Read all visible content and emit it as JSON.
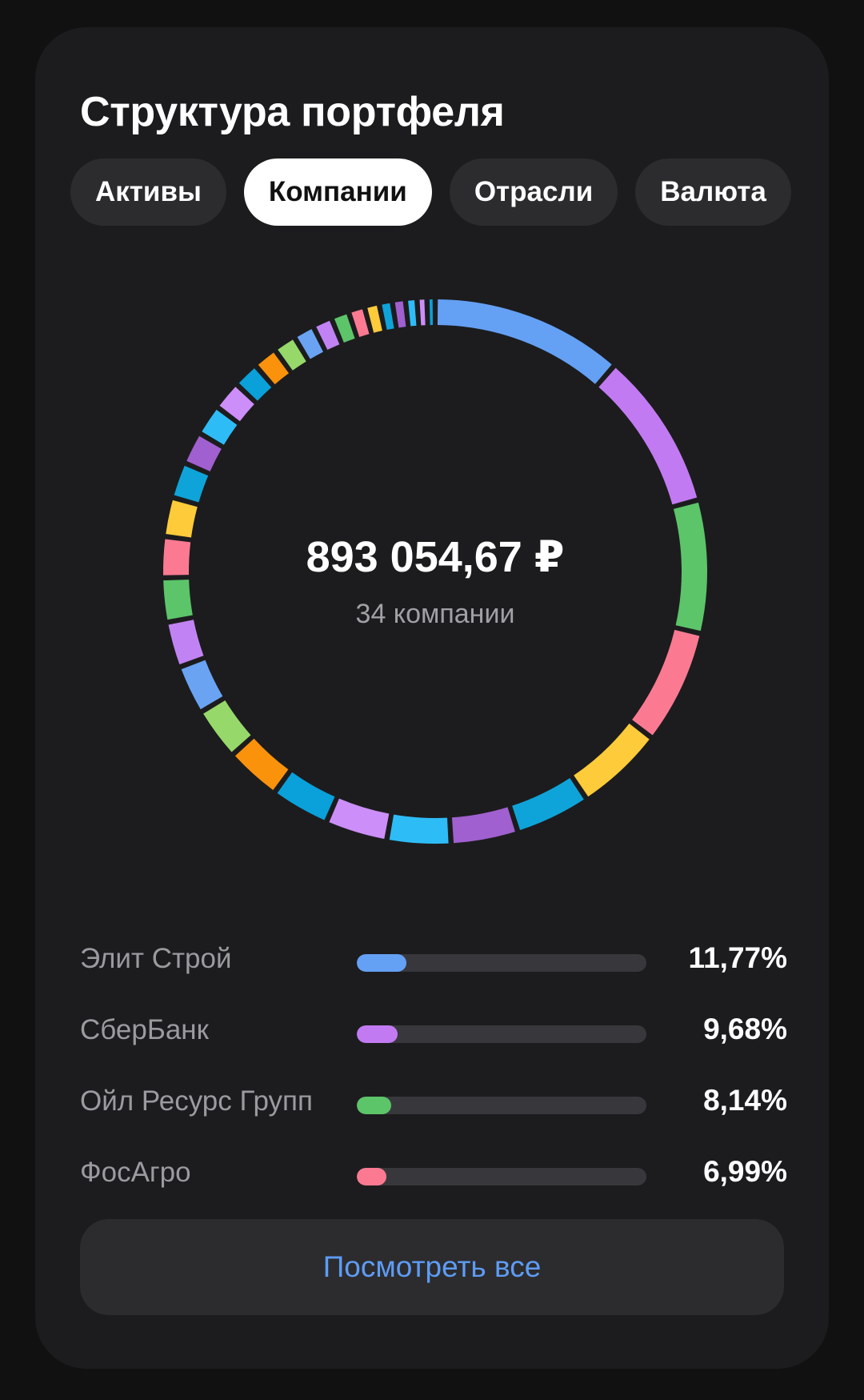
{
  "title": "Структура портфеля",
  "tabs": [
    {
      "label": "Активы",
      "active": false
    },
    {
      "label": "Компании",
      "active": true
    },
    {
      "label": "Отрасли",
      "active": false
    },
    {
      "label": "Валюта",
      "active": false
    }
  ],
  "summary": {
    "total": "893 054,67 ₽",
    "companies_count": "34 компании"
  },
  "chart_data": {
    "type": "pie",
    "variant": "donut",
    "slice_count": 34,
    "slices_percent": [
      11.77,
      9.68,
      8.14,
      6.99,
      5.4,
      4.6,
      4.1,
      3.9,
      3.8,
      3.6,
      3.4,
      3.2,
      3.0,
      2.8,
      2.7,
      2.5,
      2.4,
      2.2,
      2.0,
      1.9,
      1.8,
      1.6,
      1.5,
      1.4,
      1.3,
      1.2,
      1.1,
      1.0,
      0.9,
      0.8,
      0.8,
      0.7,
      0.6,
      0.5
    ],
    "colors": [
      "#64a0f4",
      "#c27af2",
      "#5cc469",
      "#fb7a92",
      "#fecb3a",
      "#0ea4d9",
      "#a060cf",
      "#2ebcf7",
      "#cc8ef8",
      "#0aa0da",
      "#fa920b",
      "#96d96a",
      "#6aa3f2",
      "#c183f3",
      "#5cc469",
      "#fb7a92",
      "#fecb3a",
      "#0ea4d9",
      "#a060cf",
      "#2ebcf7",
      "#cc8ef8",
      "#0aa0da",
      "#fa920b",
      "#96d96a",
      "#6aa3f2",
      "#c183f3",
      "#5cc469",
      "#fb7a92",
      "#fecb3a",
      "#0ea4d9",
      "#a060cf",
      "#2ebcf7",
      "#cc8ef8",
      "#0aa0da"
    ]
  },
  "legend": [
    {
      "name": "Элит Строй",
      "percent": "11,77%",
      "value": 11.77,
      "color": "#64a0f4"
    },
    {
      "name": "СберБанк",
      "percent": "9,68%",
      "value": 9.68,
      "color": "#c27af2"
    },
    {
      "name": "Ойл Ресурс Групп",
      "percent": "8,14%",
      "value": 8.14,
      "color": "#5cc469"
    },
    {
      "name": "ФосАгро",
      "percent": "6,99%",
      "value": 6.99,
      "color": "#fb7a92"
    }
  ],
  "view_all_label": "Посмотреть все"
}
